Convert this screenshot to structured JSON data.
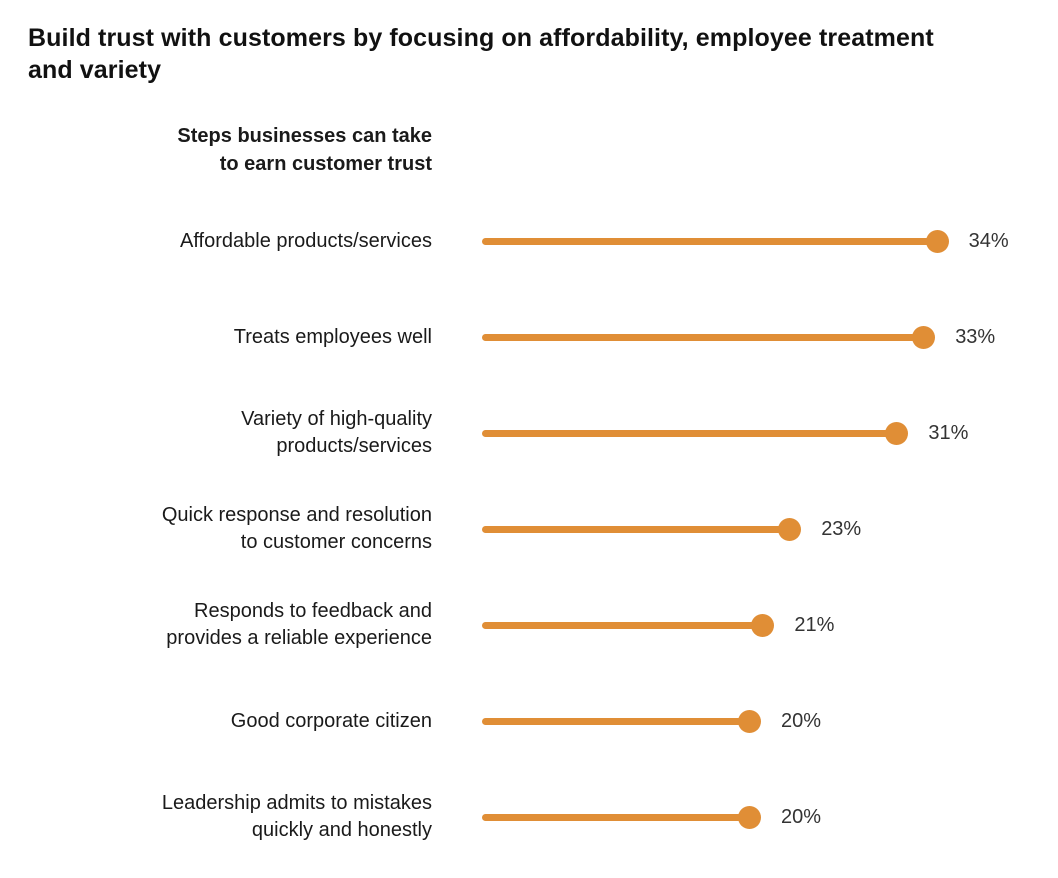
{
  "page": {
    "title": "Build trust with customers by focusing on affordability, employee treatment and variety"
  },
  "chart_data": {
    "type": "bar",
    "variant": "lollipop",
    "orientation": "horizontal",
    "title": "Build trust with customers by focusing on affordability, employee treatment and variety",
    "axis_header": "Steps businesses can take\nto earn customer trust",
    "categories": [
      "Affordable products/services",
      "Treats employees well",
      "Variety of high-quality products/services",
      "Quick response and resolution to customer concerns",
      "Responds to feedback and provides a reliable experience",
      "Good corporate citizen",
      "Leadership admits to mistakes quickly and honestly"
    ],
    "display_labels": [
      "Affordable products/services",
      "Treats employees well",
      "Variety of high-quality\nproducts/services",
      "Quick response and resolution\nto customer concerns",
      "Responds to feedback and\nprovides a reliable experience",
      "Good corporate citizen",
      "Leadership admits to mistakes\nquickly and honestly"
    ],
    "values": [
      34,
      33,
      31,
      23,
      21,
      20,
      20
    ],
    "value_labels": [
      "34%",
      "33%",
      "31%",
      "23%",
      "21%",
      "20%",
      "20%"
    ],
    "unit": "%",
    "xlim": [
      0,
      36
    ],
    "grid": false,
    "legend": false,
    "accent_color": "#E08E36",
    "label_color": "#1a1a1a",
    "value_color": "#333333"
  }
}
